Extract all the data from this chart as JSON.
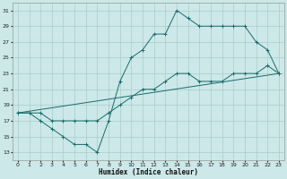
{
  "xlabel": "Humidex (Indice chaleur)",
  "bg_color": "#cce8e8",
  "grid_color": "#aacccc",
  "line_color": "#1a6b6b",
  "xlim": [
    -0.5,
    23.5
  ],
  "ylim": [
    12,
    32
  ],
  "yticks": [
    13,
    15,
    17,
    19,
    21,
    23,
    25,
    27,
    29,
    31
  ],
  "xticks": [
    0,
    1,
    2,
    3,
    4,
    5,
    6,
    7,
    8,
    9,
    10,
    11,
    12,
    13,
    14,
    15,
    16,
    17,
    18,
    19,
    20,
    21,
    22,
    23
  ],
  "line1_x": [
    0,
    1,
    2,
    3,
    4,
    5,
    6,
    7,
    8,
    9,
    10,
    11,
    12,
    13,
    14,
    15,
    16,
    17,
    18,
    19,
    20,
    21,
    22,
    23
  ],
  "line1_y": [
    18,
    18,
    17,
    16,
    15,
    14,
    14,
    13,
    17,
    22,
    25,
    26,
    28,
    28,
    31,
    30,
    29,
    29,
    29,
    29,
    29,
    27,
    26,
    23
  ],
  "line2_x": [
    0,
    1,
    2,
    3,
    4,
    5,
    6,
    7,
    8,
    9,
    10,
    11,
    12,
    13,
    14,
    15,
    16,
    17,
    18,
    19,
    20,
    21,
    22,
    23
  ],
  "line2_y": [
    18,
    18,
    18,
    17,
    17,
    17,
    17,
    17,
    18,
    19,
    20,
    21,
    21,
    22,
    23,
    23,
    22,
    22,
    22,
    23,
    23,
    23,
    24,
    23
  ],
  "line3_x": [
    0,
    23
  ],
  "line3_y": [
    18,
    23
  ]
}
